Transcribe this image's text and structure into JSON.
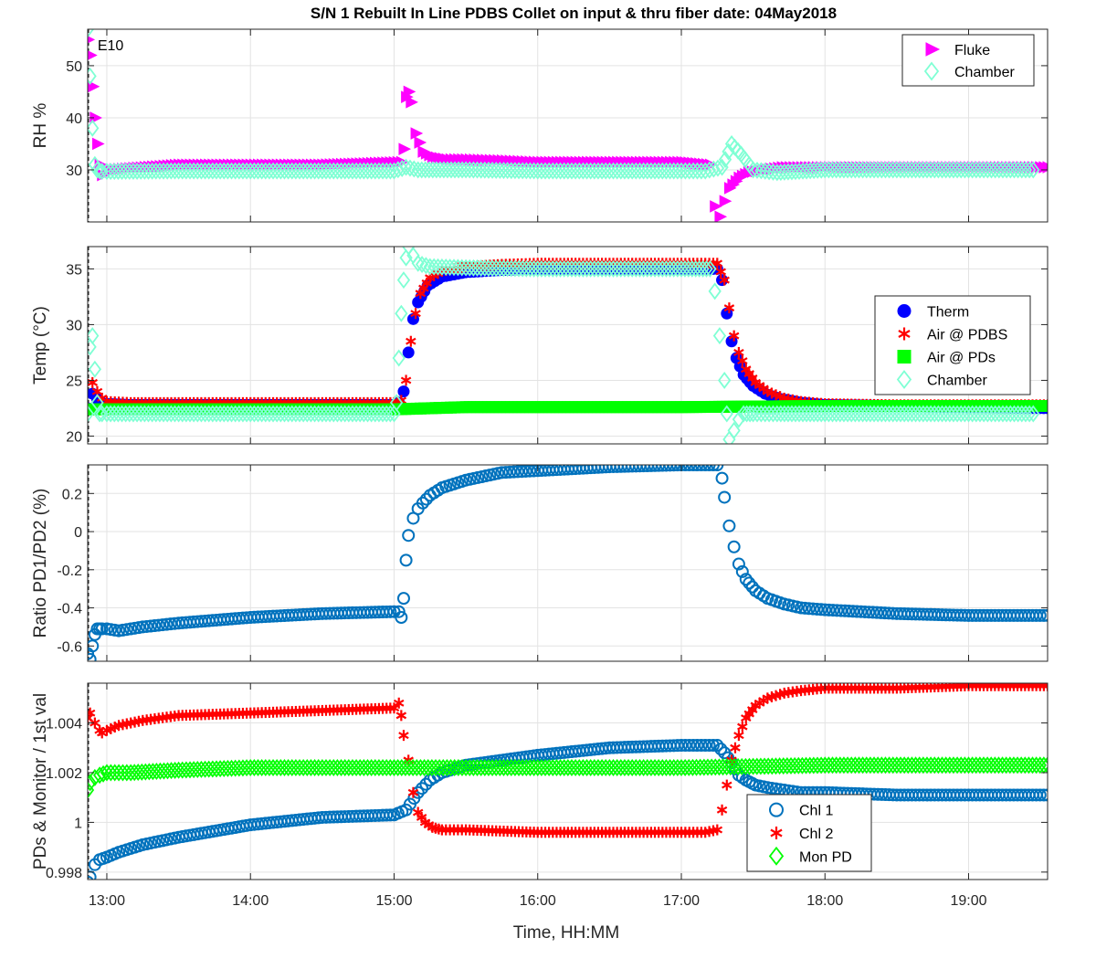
{
  "title": "S/N 1 Rebuilt In Line PDBS Collet on input & thru fiber date: 04May2018",
  "xlabel": "Time, HH:MM",
  "colors": {
    "magenta": "#ff00ff",
    "aqua": "#7fffd4",
    "blue": "#0000ff",
    "red": "#ff0000",
    "green": "#00ff00",
    "steel": "#0072bd"
  },
  "chart_data": [
    {
      "type": "scatter",
      "ylabel": "RH %",
      "xlim": [
        "12:52",
        "19:33"
      ],
      "x_ticks": [
        "13:00",
        "14:00",
        "15:00",
        "16:00",
        "17:00",
        "18:00",
        "19:00"
      ],
      "ylim": [
        20,
        57
      ],
      "y_ticks": [
        30,
        40,
        50
      ],
      "grid": true,
      "legend": "top-right",
      "annotations": [
        {
          "text": "E10",
          "x": "12:55",
          "y": 54
        }
      ],
      "series": [
        {
          "name": "Fluke",
          "marker": "triangle-right",
          "color": "#ff00ff",
          "x": [
            "12:52",
            "12:53",
            "12:54",
            "12:55",
            "12:56",
            "12:57",
            "12:58",
            "13:00",
            "13:30",
            "14:30",
            "15:03",
            "15:04",
            "15:05",
            "15:06",
            "15:07",
            "15:09",
            "15:12",
            "15:16",
            "15:22",
            "15:30",
            "15:45",
            "16:00",
            "16:30",
            "17:00",
            "17:12",
            "17:14",
            "17:16",
            "17:18",
            "17:20",
            "17:24",
            "17:28",
            "17:34",
            "17:42",
            "17:55",
            "18:10",
            "18:30",
            "19:00",
            "19:33"
          ],
          "y": [
            55,
            52,
            46,
            40,
            35,
            31,
            29,
            30,
            31,
            31,
            31.5,
            34,
            44,
            45,
            43,
            37,
            33.5,
            32.5,
            32,
            32,
            31.8,
            31.5,
            31.5,
            31.5,
            31,
            23,
            21,
            24,
            26.5,
            28.5,
            29.5,
            30,
            30.5,
            30.5,
            30.5,
            30.5,
            30.5,
            30.5
          ]
        },
        {
          "name": "Chamber",
          "marker": "diamond",
          "color": "#7fffd4",
          "x": [
            "12:52",
            "12:53",
            "12:54",
            "12:55",
            "12:56",
            "12:57",
            "12:58",
            "13:00",
            "13:30",
            "14:00",
            "15:00",
            "15:05",
            "15:10",
            "15:30",
            "16:00",
            "17:00",
            "17:10",
            "17:17",
            "17:21",
            "17:25",
            "17:30",
            "17:40",
            "18:00",
            "18:30",
            "19:00",
            "19:27"
          ],
          "y": [
            57,
            48,
            38,
            31,
            30,
            29.8,
            29.7,
            29.7,
            29.8,
            29.8,
            29.8,
            30.5,
            30,
            30,
            29.8,
            29.8,
            29.8,
            30.5,
            35,
            33,
            30,
            29.5,
            30,
            30,
            30,
            30
          ]
        }
      ]
    },
    {
      "type": "scatter",
      "ylabel": "Temp (°C)",
      "xlim": [
        "12:52",
        "19:33"
      ],
      "x_ticks": [
        "13:00",
        "14:00",
        "15:00",
        "16:00",
        "17:00",
        "18:00",
        "19:00"
      ],
      "ylim": [
        19.3,
        37
      ],
      "y_ticks": [
        20,
        25,
        30,
        35
      ],
      "grid": true,
      "legend": "middle-right",
      "series": [
        {
          "name": "Therm",
          "marker": "circle-filled",
          "color": "#0000ff",
          "x": [
            "12:52",
            "12:54",
            "12:56",
            "12:58",
            "13:00",
            "13:10",
            "13:30",
            "14:00",
            "14:30",
            "15:00",
            "15:02",
            "15:04",
            "15:06",
            "15:08",
            "15:10",
            "15:14",
            "15:20",
            "15:30",
            "15:45",
            "16:00",
            "16:30",
            "17:00",
            "17:15",
            "17:17",
            "17:19",
            "17:21",
            "17:23",
            "17:26",
            "17:30",
            "17:35",
            "17:42",
            "17:50",
            "18:00",
            "18:30",
            "19:00",
            "19:33"
          ],
          "y": [
            22.5,
            23.8,
            23.3,
            23,
            22.9,
            22.8,
            22.8,
            22.8,
            22.8,
            22.8,
            23,
            24,
            27.5,
            30.5,
            32,
            33.5,
            34.3,
            34.7,
            34.9,
            35,
            35,
            35,
            35,
            34,
            31,
            28.5,
            27,
            25.5,
            24.5,
            23.8,
            23.3,
            23,
            22.8,
            22.7,
            22.6,
            22.5
          ]
        },
        {
          "name": "Air @ PDBS",
          "marker": "asterisk",
          "color": "#ff0000",
          "x": [
            "12:52",
            "12:54",
            "12:56",
            "12:58",
            "13:00",
            "13:10",
            "13:30",
            "14:00",
            "14:30",
            "15:00",
            "15:03",
            "15:05",
            "15:07",
            "15:09",
            "15:11",
            "15:15",
            "15:20",
            "15:30",
            "15:45",
            "16:00",
            "16:30",
            "17:00",
            "17:15",
            "17:18",
            "17:20",
            "17:22",
            "17:24",
            "17:27",
            "17:31",
            "17:36",
            "17:43",
            "17:50",
            "18:00",
            "18:30",
            "19:00",
            "19:33"
          ],
          "y": [
            22.5,
            24.8,
            24,
            23.4,
            23.1,
            23,
            23,
            23,
            23,
            23,
            23.2,
            25,
            28.5,
            31,
            32.8,
            34.2,
            34.8,
            35.2,
            35.4,
            35.5,
            35.5,
            35.5,
            35.5,
            34,
            31.5,
            29,
            27.5,
            26,
            24.8,
            24,
            23.4,
            23.1,
            22.9,
            22.8,
            22.8,
            22.8
          ]
        },
        {
          "name": "Air @ PDs",
          "marker": "square-filled",
          "color": "#00ff00",
          "x": [
            "12:52",
            "12:54",
            "12:56",
            "12:58",
            "13:00",
            "14:00",
            "15:00",
            "15:30",
            "16:00",
            "17:00",
            "18:00",
            "19:00",
            "19:33"
          ],
          "y": [
            22.4,
            22.4,
            22.4,
            22.4,
            22.4,
            22.4,
            22.4,
            22.6,
            22.6,
            22.6,
            22.7,
            22.7,
            22.7
          ]
        },
        {
          "name": "Chamber",
          "marker": "diamond",
          "color": "#7fffd4",
          "x": [
            "12:52",
            "12:53",
            "12:54",
            "12:55",
            "12:56",
            "12:57",
            "12:58",
            "13:00",
            "13:30",
            "14:00",
            "15:00",
            "15:01",
            "15:02",
            "15:03",
            "15:04",
            "15:05",
            "15:06",
            "15:08",
            "15:10",
            "15:15",
            "15:30",
            "16:00",
            "17:00",
            "17:12",
            "17:14",
            "17:16",
            "17:18",
            "17:19",
            "17:20",
            "17:22",
            "17:24",
            "17:26",
            "17:30",
            "17:40",
            "18:00",
            "18:30",
            "19:00",
            "19:27"
          ],
          "y": [
            22,
            28,
            29,
            26,
            23,
            22,
            22,
            22,
            22,
            22,
            22,
            23,
            27,
            31,
            34,
            36,
            37,
            36.2,
            35.5,
            35.2,
            35.1,
            35,
            35,
            35,
            33,
            29,
            25,
            22,
            19.7,
            20.5,
            21.5,
            22,
            22,
            22,
            22,
            22,
            22,
            22
          ]
        }
      ]
    },
    {
      "type": "scatter",
      "ylabel": "Ratio PD1/PD2 (%)",
      "xlim": [
        "12:52",
        "19:33"
      ],
      "x_ticks": [
        "13:00",
        "14:00",
        "15:00",
        "16:00",
        "17:00",
        "18:00",
        "19:00"
      ],
      "ylim": [
        -0.68,
        0.35
      ],
      "y_ticks": [
        -0.6,
        -0.4,
        -0.2,
        0,
        0.2
      ],
      "grid": true,
      "series": [
        {
          "name": "",
          "marker": "circle-open",
          "color": "#0072bd",
          "x": [
            "12:52",
            "12:53",
            "12:54",
            "12:55",
            "12:56",
            "12:57",
            "12:58",
            "13:00",
            "13:05",
            "13:15",
            "13:30",
            "14:00",
            "14:30",
            "15:00",
            "15:02",
            "15:03",
            "15:04",
            "15:05",
            "15:06",
            "15:08",
            "15:10",
            "15:12",
            "15:15",
            "15:20",
            "15:30",
            "15:45",
            "16:00",
            "16:30",
            "17:00",
            "17:15",
            "17:17",
            "17:18",
            "17:20",
            "17:22",
            "17:24",
            "17:27",
            "17:31",
            "17:36",
            "17:43",
            "17:50",
            "18:00",
            "18:15",
            "18:30",
            "19:00",
            "19:33"
          ],
          "y": [
            -0.64,
            -0.67,
            -0.6,
            -0.54,
            -0.51,
            -0.51,
            -0.51,
            -0.51,
            -0.52,
            -0.5,
            -0.48,
            -0.45,
            -0.43,
            -0.42,
            -0.42,
            -0.45,
            -0.35,
            -0.15,
            -0.02,
            0.07,
            0.12,
            0.15,
            0.19,
            0.23,
            0.27,
            0.31,
            0.32,
            0.34,
            0.35,
            0.35,
            0.28,
            0.18,
            0.03,
            -0.08,
            -0.17,
            -0.25,
            -0.31,
            -0.35,
            -0.38,
            -0.4,
            -0.41,
            -0.42,
            -0.43,
            -0.44,
            -0.44
          ]
        }
      ]
    },
    {
      "type": "scatter",
      "ylabel": "PDs & Monitor / 1st val",
      "xlim": [
        "12:52",
        "19:33"
      ],
      "x_ticks": [
        "13:00",
        "14:00",
        "15:00",
        "16:00",
        "17:00",
        "18:00",
        "19:00"
      ],
      "ylim": [
        0.9977,
        1.0056
      ],
      "y_ticks": [
        0.998,
        1,
        1.002,
        1.004
      ],
      "grid": true,
      "legend": "bottom-right",
      "series": [
        {
          "name": "Chl 1",
          "marker": "circle-open",
          "color": "#0072bd",
          "x": [
            "12:52",
            "12:53",
            "12:55",
            "12:57",
            "13:00",
            "13:05",
            "13:15",
            "13:30",
            "14:00",
            "14:30",
            "15:00",
            "15:05",
            "15:10",
            "15:15",
            "15:20",
            "15:30",
            "16:00",
            "16:30",
            "17:00",
            "17:10",
            "17:15",
            "17:18",
            "17:21",
            "17:24",
            "17:27",
            "17:31",
            "17:36",
            "17:43",
            "17:50",
            "18:00",
            "18:30",
            "19:00",
            "19:33"
          ],
          "y": [
            0.9976,
            0.9978,
            0.9983,
            0.9985,
            0.9986,
            0.9988,
            0.9991,
            0.9994,
            0.9999,
            1.0002,
            1.0003,
            1.0005,
            1.0012,
            1.0017,
            1.002,
            1.0023,
            1.0027,
            1.003,
            1.0031,
            1.0031,
            1.0031,
            1.0028,
            1.0024,
            1.0019,
            1.0017,
            1.0015,
            1.0014,
            1.0013,
            1.0012,
            1.0012,
            1.0011,
            1.0011,
            1.0011
          ]
        },
        {
          "name": "Chl 2",
          "marker": "asterisk",
          "color": "#ff0000",
          "x": [
            "12:52",
            "12:53",
            "12:55",
            "12:57",
            "12:58",
            "13:00",
            "13:05",
            "13:15",
            "13:30",
            "14:00",
            "14:30",
            "15:00",
            "15:02",
            "15:03",
            "15:04",
            "15:06",
            "15:08",
            "15:10",
            "15:13",
            "15:16",
            "15:20",
            "15:30",
            "16:00",
            "16:30",
            "17:00",
            "17:10",
            "17:15",
            "17:17",
            "17:19",
            "17:21",
            "17:24",
            "17:27",
            "17:31",
            "17:36",
            "17:43",
            "17:50",
            "18:00",
            "18:30",
            "19:00",
            "19:33"
          ],
          "y": [
            1.0042,
            1.0044,
            1.004,
            1.0037,
            1.0036,
            1.0037,
            1.0039,
            1.0041,
            1.0043,
            1.0044,
            1.0045,
            1.0046,
            1.0048,
            1.0043,
            1.0035,
            1.0025,
            1.0012,
            1.0004,
            1,
            0.9998,
            0.9997,
            0.9997,
            0.9996,
            0.9996,
            0.9996,
            0.9996,
            0.9997,
            1.0005,
            1.0015,
            1.0025,
            1.0035,
            1.0042,
            1.0047,
            1.005,
            1.0052,
            1.0053,
            1.0054,
            1.0054,
            1.0055,
            1.0055
          ]
        },
        {
          "name": "Mon PD",
          "marker": "diamond",
          "color": "#00ff00",
          "x": [
            "12:52",
            "12:53",
            "12:55",
            "12:57",
            "13:00",
            "13:10",
            "13:30",
            "14:00",
            "15:00",
            "16:00",
            "17:00",
            "18:00",
            "19:00",
            "19:33"
          ],
          "y": [
            1.0013,
            1.0016,
            1.0018,
            1.0019,
            1.002,
            1.002,
            1.0021,
            1.0022,
            1.0022,
            1.0022,
            1.0022,
            1.0023,
            1.0023,
            1.0023
          ]
        }
      ]
    }
  ]
}
